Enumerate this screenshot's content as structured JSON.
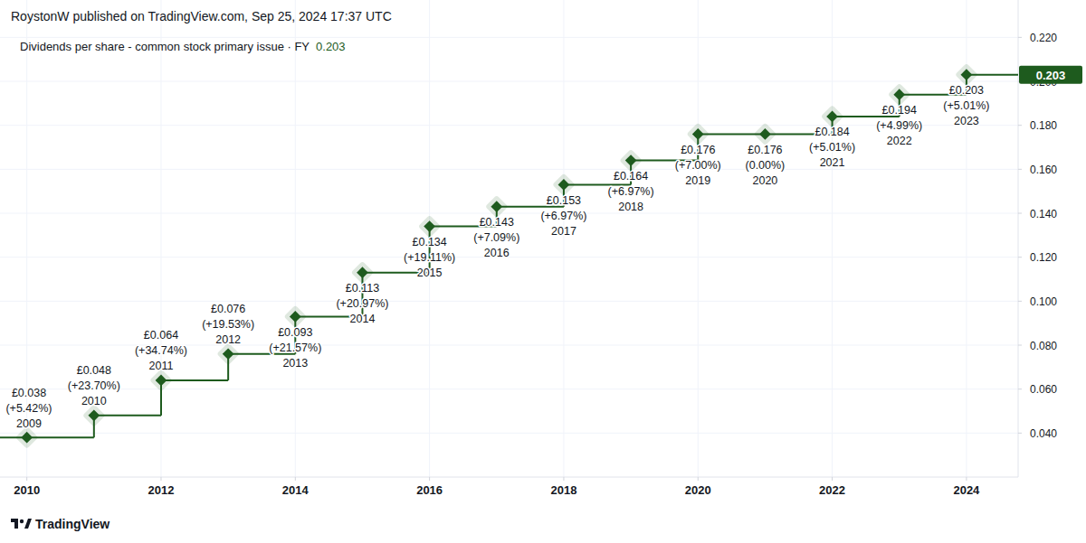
{
  "header": {
    "text": "RoystonW published on TradingView.com, Sep 25, 2024 17:37 UTC"
  },
  "footer": {
    "brand": "TradingView"
  },
  "chart_data": {
    "type": "line",
    "line_style": "step",
    "marker": "diamond",
    "legend": "top-left",
    "grid": true,
    "data_labels": true,
    "x": [
      2010,
      2011,
      2012,
      2013,
      2014,
      2015,
      2016,
      2017,
      2018,
      2019,
      2020,
      2021,
      2022,
      2023,
      2024
    ],
    "xlim": [
      2009.6,
      2024.77
    ],
    "xticks": [
      2010,
      2012,
      2014,
      2016,
      2018,
      2020,
      2022,
      2024
    ],
    "ylim": [
      0.02,
      0.237
    ],
    "yticks": [
      {
        "value": 0.04,
        "label": "0.040"
      },
      {
        "value": 0.06,
        "label": "0.060"
      },
      {
        "value": 0.08,
        "label": "0.080"
      },
      {
        "value": 0.1,
        "label": "0.100"
      },
      {
        "value": 0.12,
        "label": "0.120"
      },
      {
        "value": 0.14,
        "label": "0.140"
      },
      {
        "value": 0.16,
        "label": "0.160"
      },
      {
        "value": 0.18,
        "label": "0.180"
      },
      {
        "value": 0.2,
        "label": "0.200"
      },
      {
        "value": 0.22,
        "label": "0.220"
      }
    ],
    "series": [
      {
        "name": "Dividends per share - common stock primary issue · FY",
        "color": "#1e5b1e",
        "values": [
          0.038,
          0.048,
          0.064,
          0.076,
          0.093,
          0.113,
          0.134,
          0.143,
          0.153,
          0.164,
          0.176,
          0.176,
          0.184,
          0.194,
          0.203
        ],
        "value_labels": [
          "£0.038",
          "£0.048",
          "£0.064",
          "£0.076",
          "£0.093",
          "£0.113",
          "£0.134",
          "£0.143",
          "£0.153",
          "£0.164",
          "£0.176",
          "£0.176",
          "£0.184",
          "£0.194",
          "£0.203"
        ],
        "change_labels": [
          "(+5.42%)",
          "(+23.70%)",
          "(+34.74%)",
          "(+19.53%)",
          "(+21.57%)",
          "(+20.97%)",
          "(+19.11%)",
          "(+7.09%)",
          "(+6.97%)",
          "(+6.97%)",
          "(+7.00%)",
          "(0.00%)",
          "(+5.01%)",
          "(+4.99%)",
          "(+5.01%)"
        ],
        "period_labels": [
          "2009",
          "2010",
          "2011",
          "2012",
          "2013",
          "2014",
          "2015",
          "2016",
          "2017",
          "2018",
          "2019",
          "2020",
          "2021",
          "2022",
          "2023"
        ]
      }
    ]
  }
}
